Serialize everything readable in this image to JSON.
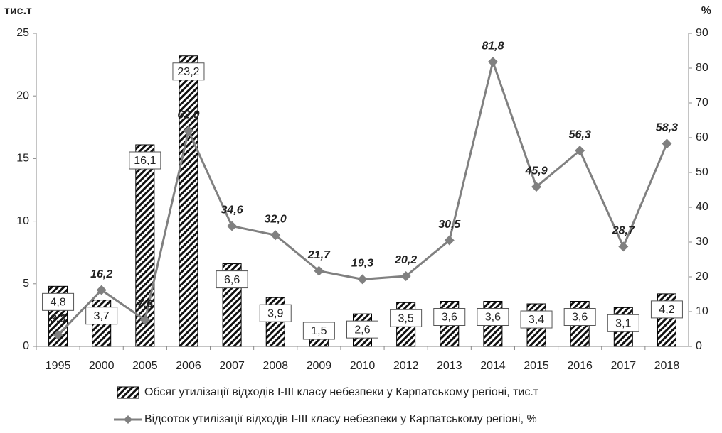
{
  "chart_data": {
    "type": "bar_line",
    "y_label": "тис.т",
    "y2_label": "%",
    "categories": [
      "1995",
      "2000",
      "2005",
      "2006",
      "2007",
      "2008",
      "2009",
      "2010",
      "2012",
      "2013",
      "2014",
      "2015",
      "2016",
      "2017",
      "2018"
    ],
    "series": [
      {
        "name": "Обсяг утилізації відходів І-ІІІ класу небезпеки у Карпатському регіоні, тис.т",
        "type": "bar",
        "color": "#000000",
        "values": [
          4.8,
          3.7,
          16.1,
          23.2,
          6.6,
          3.9,
          1.5,
          2.6,
          3.5,
          3.6,
          3.6,
          3.4,
          3.6,
          3.1,
          4.2
        ],
        "value_labels": [
          "4,8",
          "3,7",
          "16,1",
          "23,2",
          "6,6",
          "3,9",
          "1,5",
          "2,6",
          "3,5",
          "3,6",
          "3,6",
          "3,4",
          "3,6",
          "3,1",
          "4,2"
        ]
      },
      {
        "name": "Відсоток утилізації відходів І-ІІІ класу небезпеки у Карпатському регіоні, %",
        "type": "line",
        "axis": "y2",
        "color": "#808080",
        "values": [
          3.3,
          16.2,
          7.6,
          62.0,
          34.6,
          32.0,
          21.7,
          19.3,
          20.2,
          30.5,
          81.8,
          45.9,
          56.3,
          28.7,
          58.3
        ],
        "value_labels": [
          "3,3",
          "16,2",
          "7,6",
          "62,0",
          "34,6",
          "32,0",
          "21,7",
          "19,3",
          "20,2",
          "30,5",
          "81,8",
          "45,9",
          "56,3",
          "28,7",
          "58,3"
        ]
      }
    ],
    "ylim": [
      0,
      25
    ],
    "yticks": [
      0,
      5,
      10,
      15,
      20,
      25
    ],
    "y2lim": [
      0,
      90
    ],
    "y2ticks": [
      0,
      10,
      20,
      30,
      40,
      50,
      60,
      70,
      80,
      90
    ],
    "grid": false,
    "legend": "bottom"
  }
}
